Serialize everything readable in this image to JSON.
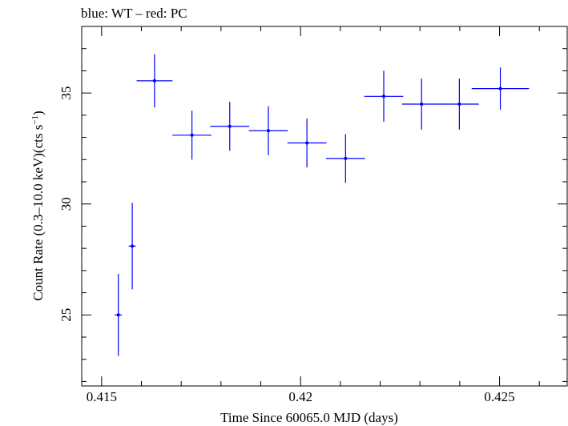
{
  "chart_data": {
    "type": "scatter",
    "title": "blue: WT – red: PC",
    "xlabel": "Time Since 60065.0 MJD (days)",
    "ylabel_main": "Count Rate (0.3–10.0 keV)(cts s",
    "ylabel_sup": "−1",
    "ylabel_end": ")",
    "xlim": [
      0.4145,
      0.4267
    ],
    "ylim": [
      21.8,
      38.0
    ],
    "x_ticks": [
      {
        "value": 0.415,
        "label": "0.415"
      },
      {
        "value": 0.42,
        "label": "0.42"
      },
      {
        "value": 0.425,
        "label": "0.425"
      }
    ],
    "y_ticks": [
      {
        "value": 25,
        "label": "25"
      },
      {
        "value": 30,
        "label": "30"
      },
      {
        "value": 35,
        "label": "35"
      }
    ],
    "series": [
      {
        "color": "#0000ff",
        "points": [
          {
            "x": 0.41542,
            "xerr": 9e-05,
            "y": 25.0,
            "yerr": 1.85
          },
          {
            "x": 0.41577,
            "xerr": 9e-05,
            "y": 28.1,
            "yerr": 1.95
          },
          {
            "x": 0.41633,
            "xerr": 0.00045,
            "y": 35.55,
            "yerr": 1.2
          },
          {
            "x": 0.41727,
            "xerr": 0.00049,
            "y": 33.1,
            "yerr": 1.1
          },
          {
            "x": 0.41822,
            "xerr": 0.00049,
            "y": 33.5,
            "yerr": 1.1
          },
          {
            "x": 0.41919,
            "xerr": 0.00049,
            "y": 33.3,
            "yerr": 1.1
          },
          {
            "x": 0.42016,
            "xerr": 0.00049,
            "y": 32.75,
            "yerr": 1.1
          },
          {
            "x": 0.42113,
            "xerr": 0.00049,
            "y": 32.05,
            "yerr": 1.1
          },
          {
            "x": 0.42209,
            "xerr": 0.00049,
            "y": 34.85,
            "yerr": 1.15
          },
          {
            "x": 0.42304,
            "xerr": 0.00049,
            "y": 34.5,
            "yerr": 1.15
          },
          {
            "x": 0.42399,
            "xerr": 0.00049,
            "y": 34.5,
            "yerr": 1.15
          },
          {
            "x": 0.42502,
            "xerr": 0.00072,
            "y": 35.2,
            "yerr": 0.95
          }
        ]
      }
    ]
  }
}
